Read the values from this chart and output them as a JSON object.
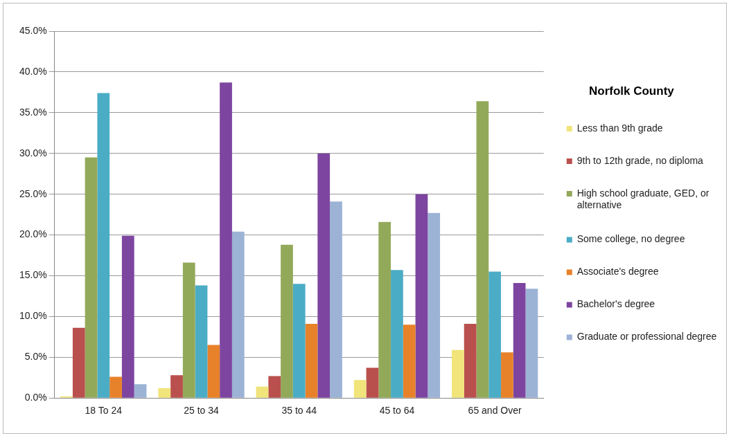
{
  "chart_data": {
    "type": "bar",
    "legend_title": "Norfolk County",
    "categories": [
      "18 To 24",
      "25 to 34",
      "35 to 44",
      "45 to 64",
      "65 and Over"
    ],
    "series": [
      {
        "name": "Less than 9th grade",
        "color": "#f0e47a",
        "values": [
          0.2,
          1.2,
          1.4,
          2.2,
          5.9
        ]
      },
      {
        "name": "9th to 12th grade, no diploma",
        "color": "#b9504d",
        "values": [
          8.6,
          2.8,
          2.7,
          3.7,
          9.1
        ]
      },
      {
        "name": "High school graduate, GED, or alternative",
        "color": "#93a95a",
        "values": [
          29.5,
          16.6,
          18.8,
          21.6,
          36.4
        ]
      },
      {
        "name": "Some college, no degree",
        "color": "#4bacc6",
        "values": [
          37.4,
          13.8,
          14.0,
          15.7,
          15.5
        ]
      },
      {
        "name": "Associate's degree",
        "color": "#e8822a",
        "values": [
          2.6,
          6.5,
          9.1,
          9.0,
          5.6
        ]
      },
      {
        "name": "Bachelor's degree",
        "color": "#7d45a0",
        "values": [
          19.9,
          38.7,
          30.0,
          25.0,
          14.1
        ]
      },
      {
        "name": "Graduate or professional degree",
        "color": "#9cb3d6",
        "values": [
          1.7,
          20.4,
          24.1,
          22.7,
          13.4
        ]
      }
    ],
    "ylim": [
      0,
      45
    ],
    "yticks": [
      {
        "value": 0,
        "label": "0.0%"
      },
      {
        "value": 5,
        "label": "5.0%"
      },
      {
        "value": 10,
        "label": "10.0%"
      },
      {
        "value": 15,
        "label": "15.0%"
      },
      {
        "value": 20,
        "label": "20.0%"
      },
      {
        "value": 25,
        "label": "25.0%"
      },
      {
        "value": 30,
        "label": "30.0%"
      },
      {
        "value": 35,
        "label": "35.0%"
      },
      {
        "value": 40,
        "label": "40.0%"
      },
      {
        "value": 45,
        "label": "45.0%"
      }
    ],
    "grid": "y",
    "legend": "right"
  }
}
